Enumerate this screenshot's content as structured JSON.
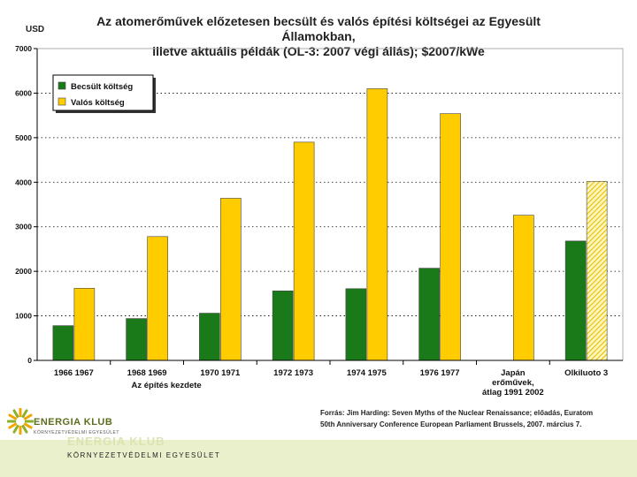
{
  "chart_data": {
    "type": "bar",
    "title_line1": "Az atomerőművek előzetesen becsült és valós építési költségei az Egyesült Államokban,",
    "title_line2": "illetve aktuális példák (OL-3: 2007 végi állás); $2007/kWe",
    "ylabel": "USD",
    "xlabel": "Az építés kezdete",
    "ylim": [
      0,
      7000
    ],
    "yticks": [
      "0",
      "1000",
      "2000",
      "3000",
      "4000",
      "5000",
      "6000",
      "7000"
    ],
    "grid": true,
    "legend_position": "top-left",
    "categories": [
      [
        "1966 1967"
      ],
      [
        "1968 1969"
      ],
      [
        "1970 1971"
      ],
      [
        "1972 1973"
      ],
      [
        "1974 1975"
      ],
      [
        "1976 1977"
      ],
      [
        "Japán",
        "erőművek,",
        "átlag 1991 2002"
      ],
      [
        "Olkiluoto 3"
      ]
    ],
    "series": [
      {
        "name": "Becsült költség",
        "color": "#1a7a1a",
        "values": [
          780,
          940,
          1060,
          1560,
          1610,
          2070,
          null,
          2680
        ]
      },
      {
        "name": "Valós költség",
        "color": "#ffcc00",
        "values": [
          1620,
          2780,
          3640,
          4900,
          6100,
          5540,
          3260,
          4020
        ]
      }
    ],
    "hatched": [
      "Olkiluoto 3"
    ]
  },
  "source": {
    "line1": "Forrás: Jim Harding: Seven Myths of the Nuclear Renaissance; előadás, Euratom",
    "line2": "50th Anniversary Conference European Parliament    Brussels, 2007. március 7."
  },
  "branding": {
    "logo_name": "ENERGIA KLUB",
    "logo_sub": "KÖRNYEZETVÉDELMI EGYESÜLET",
    "footer_ghost": "ENERGIA KLUB",
    "footer_org": "KÖRNYEZETVÉDELMI EGYESÜLET",
    "accent": "#8db02a"
  }
}
